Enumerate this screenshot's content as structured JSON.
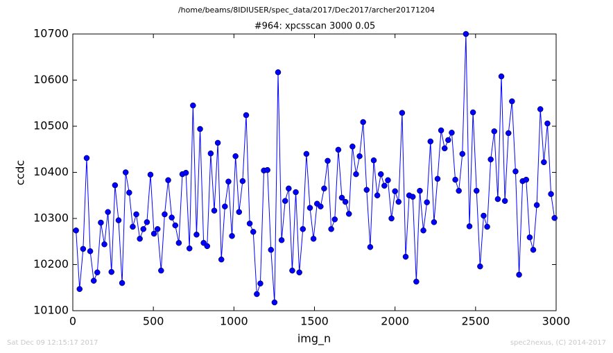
{
  "chart_data": {
    "type": "line",
    "header": "/home/beams/8IDIUSER/spec_data/2017/Dec2017/archer20171204",
    "title": "#964: xpcsscan 3000 0.05",
    "x_label": "img_n",
    "y_label": "ccdc",
    "footer_left": "Sat Dec 09 12:15:17 2017",
    "footer_right": "spec2nexus, (C) 2014-2017",
    "xlim": [
      0,
      3000
    ],
    "xticks": [
      0,
      500,
      1000,
      1500,
      2000,
      2500,
      3000
    ],
    "ylim": [
      10100,
      10700
    ],
    "yticks": [
      10100,
      10200,
      10300,
      10400,
      10500,
      10600,
      10700
    ],
    "x": [
      20,
      42,
      64,
      86,
      108,
      130,
      152,
      174,
      196,
      218,
      240,
      262,
      284,
      306,
      328,
      350,
      372,
      394,
      416,
      438,
      460,
      482,
      504,
      526,
      548,
      570,
      592,
      614,
      636,
      658,
      680,
      702,
      724,
      746,
      768,
      790,
      812,
      834,
      856,
      878,
      900,
      922,
      944,
      966,
      988,
      1010,
      1032,
      1054,
      1076,
      1098,
      1120,
      1142,
      1164,
      1186,
      1208,
      1230,
      1252,
      1274,
      1296,
      1318,
      1340,
      1362,
      1384,
      1406,
      1428,
      1450,
      1472,
      1494,
      1516,
      1538,
      1560,
      1582,
      1604,
      1626,
      1648,
      1670,
      1692,
      1714,
      1736,
      1758,
      1780,
      1802,
      1824,
      1846,
      1868,
      1890,
      1912,
      1934,
      1956,
      1978,
      2000,
      2022,
      2044,
      2066,
      2088,
      2110,
      2132,
      2154,
      2176,
      2198,
      2220,
      2242,
      2264,
      2286,
      2308,
      2330,
      2352,
      2374,
      2396,
      2418,
      2440,
      2462,
      2484,
      2506,
      2528,
      2550,
      2572,
      2594,
      2616,
      2638,
      2660,
      2682,
      2704,
      2726,
      2748,
      2770,
      2792,
      2814,
      2836,
      2858,
      2880,
      2902,
      2924,
      2946,
      2968,
      2990
    ],
    "series": [
      {
        "name": "ccdc",
        "color": "#0000ff",
        "values": [
          10274,
          10147,
          10234,
          10431,
          10229,
          10165,
          10183,
          10291,
          10244,
          10314,
          10184,
          10372,
          10296,
          10160,
          10400,
          10356,
          10282,
          10309,
          10256,
          10277,
          10292,
          10395,
          10267,
          10277,
          10187,
          10309,
          10383,
          10302,
          10285,
          10247,
          10396,
          10399,
          10235,
          10545,
          10265,
          10494,
          10247,
          10240,
          10441,
          10317,
          10464,
          10211,
          10326,
          10380,
          10262,
          10435,
          10314,
          10381,
          10524,
          10289,
          10271,
          10136,
          10159,
          10404,
          10405,
          10232,
          10118,
          10617,
          10253,
          10338,
          10365,
          10187,
          10357,
          10183,
          10277,
          10440,
          10323,
          10256,
          10332,
          10326,
          10365,
          10425,
          10277,
          10298,
          10449,
          10345,
          10336,
          10310,
          10456,
          10396,
          10435,
          10509,
          10362,
          10238,
          10426,
          10350,
          10396,
          10371,
          10383,
          10300,
          10359,
          10336,
          10529,
          10217,
          10350,
          10347,
          10163,
          10360,
          10274,
          10335,
          10467,
          10292,
          10386,
          10491,
          10452,
          10470,
          10486,
          10384,
          10360,
          10440,
          10700,
          10283,
          10530,
          10360,
          10196,
          10306,
          10282,
          10428,
          10489,
          10342,
          10608,
          10338,
          10485,
          10554,
          10402,
          10178,
          10381,
          10384,
          10259,
          10232,
          10329,
          10537,
          10422,
          10506,
          10353,
          10301
        ]
      }
    ]
  }
}
